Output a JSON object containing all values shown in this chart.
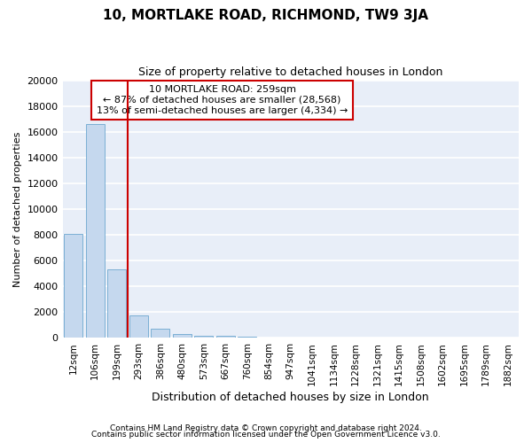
{
  "title": "10, MORTLAKE ROAD, RICHMOND, TW9 3JA",
  "subtitle": "Size of property relative to detached houses in London",
  "xlabel": "Distribution of detached houses by size in London",
  "ylabel": "Number of detached properties",
  "bar_color": "#c5d8ee",
  "bar_edge_color": "#7bafd4",
  "background_color": "#e8eef8",
  "grid_color": "#ffffff",
  "categories": [
    "12sqm",
    "106sqm",
    "199sqm",
    "293sqm",
    "386sqm",
    "480sqm",
    "573sqm",
    "667sqm",
    "760sqm",
    "854sqm",
    "947sqm",
    "1041sqm",
    "1134sqm",
    "1228sqm",
    "1321sqm",
    "1415sqm",
    "1508sqm",
    "1602sqm",
    "1695sqm",
    "1789sqm",
    "1882sqm"
  ],
  "values": [
    8100,
    16600,
    5300,
    1750,
    750,
    300,
    200,
    180,
    100,
    0,
    0,
    0,
    0,
    0,
    0,
    0,
    0,
    0,
    0,
    0,
    0
  ],
  "property_label": "10 MORTLAKE ROAD: 259sqm",
  "annotation_line1": "← 87% of detached houses are smaller (28,568)",
  "annotation_line2": "13% of semi-detached houses are larger (4,334) →",
  "vline_x_index": 2.5,
  "ylim": [
    0,
    20000
  ],
  "yticks": [
    0,
    2000,
    4000,
    6000,
    8000,
    10000,
    12000,
    14000,
    16000,
    18000,
    20000
  ],
  "footnote1": "Contains HM Land Registry data © Crown copyright and database right 2024.",
  "footnote2": "Contains public sector information licensed under the Open Government Licence v3.0.",
  "annotation_box_color": "#cc0000",
  "vline_color": "#cc0000",
  "title_fontsize": 11,
  "subtitle_fontsize": 9,
  "ylabel_fontsize": 8,
  "xlabel_fontsize": 9,
  "tick_fontsize": 8,
  "xtick_fontsize": 7.5,
  "footnote_fontsize": 6.5
}
